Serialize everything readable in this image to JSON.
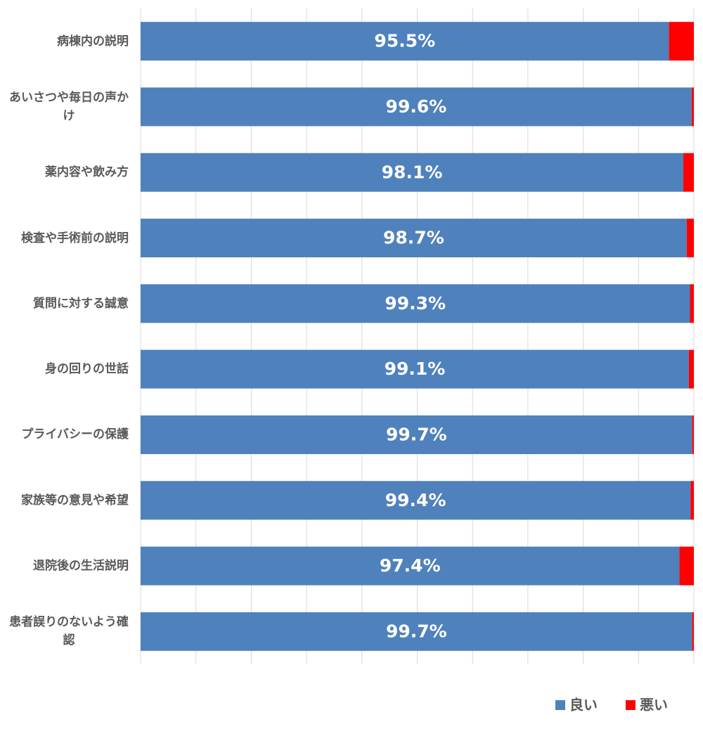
{
  "chart_data": {
    "type": "stacked_barh",
    "categories": [
      "病棟内の説明",
      "あいさつや毎日の声かけ",
      "薬内容や飲み方",
      "検査や手術前の説明",
      "質問に対する誠意",
      "身の回りの世話",
      "プライバシーの保護",
      "家族等の意見や希望",
      "退院後の生活説明",
      "患者誤りのないよう確認"
    ],
    "series": [
      {
        "name": "良い",
        "color": "#4f81bd",
        "values": [
          95.5,
          99.6,
          98.1,
          98.7,
          99.3,
          99.1,
          99.7,
          99.4,
          97.4,
          99.7
        ],
        "value_labels": [
          "95.5%",
          "99.6%",
          "98.1%",
          "98.7%",
          "99.3%",
          "99.1%",
          "99.7%",
          "99.4%",
          "97.4%",
          "99.7%"
        ]
      },
      {
        "name": "悪い",
        "color": "#ff0000",
        "values": [
          4.5,
          0.4,
          1.9,
          1.3,
          0.7,
          0.9,
          0.3,
          0.6,
          2.6,
          0.3
        ]
      }
    ],
    "xlim": [
      0,
      100
    ],
    "xticks": [
      0,
      10,
      20,
      30,
      40,
      50,
      60,
      70,
      80,
      90,
      100
    ],
    "grid": true,
    "legend": "bottom-right"
  }
}
